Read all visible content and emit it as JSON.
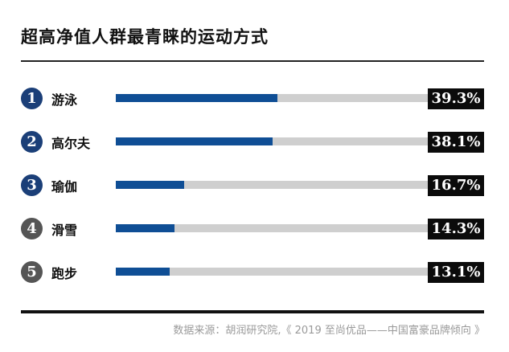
{
  "chart_data": {
    "type": "bar",
    "title": "超高净值人群最青睐的运动方式",
    "categories": [
      "游泳",
      "高尔夫",
      "瑜伽",
      "滑雪",
      "跑步"
    ],
    "ranks": [
      "1",
      "2",
      "3",
      "4",
      "5"
    ],
    "values": [
      39.3,
      38.1,
      16.7,
      14.3,
      13.1
    ],
    "value_labels": [
      "39.3%",
      "38.1%",
      "16.7%",
      "14.3%",
      "13.1%"
    ],
    "bar_max": 76,
    "unit": "%",
    "colors": {
      "bar_fill": "#0f4e95",
      "bar_track": "#cfcfcf",
      "badge_blue": "#1b3f78",
      "badge_gray": "#555555",
      "value_box": "#0b0b0b"
    },
    "badge_color_by_row": [
      "blue",
      "blue",
      "blue",
      "gray",
      "gray"
    ],
    "source": "数据来源：胡润研究院,《 2019 至尚优品——中国富豪品牌倾向 》"
  }
}
